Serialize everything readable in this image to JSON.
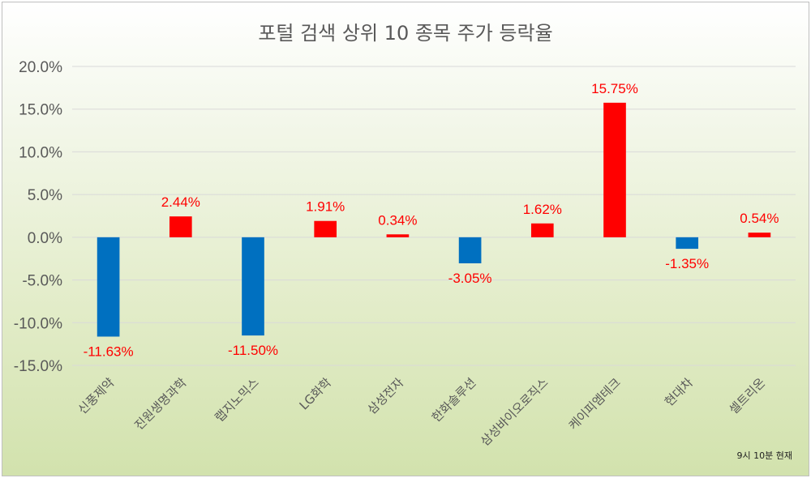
{
  "chart_data": {
    "type": "bar",
    "title": "포털 검색 상위 10 종목 주가 등락율",
    "categories": [
      "신풍제약",
      "진원생명과학",
      "랩지노믹스",
      "LG화학",
      "삼성전자",
      "한화솔루션",
      "삼성바이오로직스",
      "케이피엠테크",
      "현대차",
      "셀트리온"
    ],
    "values": [
      -11.63,
      2.44,
      -11.5,
      1.91,
      0.34,
      -3.05,
      1.62,
      15.75,
      -1.35,
      0.54
    ],
    "data_labels": [
      "-11.63%",
      "2.44%",
      "-11.50%",
      "1.91%",
      "0.34%",
      "-3.05%",
      "1.62%",
      "15.75%",
      "-1.35%",
      "0.54%"
    ],
    "ylim": [
      -15,
      20
    ],
    "yticks": [
      20,
      15,
      10,
      5,
      0,
      -5,
      -10,
      -15
    ],
    "ytick_labels": [
      "20.0%",
      "15.0%",
      "10.0%",
      "5.0%",
      "0.0%",
      "-5.0%",
      "-10.0%",
      "-15.0%"
    ],
    "grid": true,
    "colors": {
      "positive": "#ff0000",
      "negative": "#0070c0",
      "label": "#ff0000"
    },
    "note": "9시 10분 현재"
  }
}
